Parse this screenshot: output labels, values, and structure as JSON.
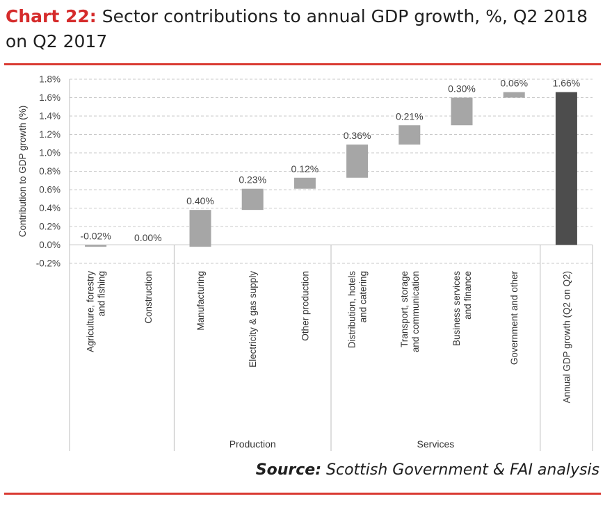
{
  "header": {
    "title_prefix": "Chart 22:",
    "title_text": "Sector contributions to annual GDP growth, %, Q2 2018 on Q2 2017"
  },
  "footer": {
    "source_label": "Source:",
    "source_text": "Scottish Government & FAI analysis"
  },
  "colors": {
    "sector_bar": "#a6a6a6",
    "total_bar": "#4d4d4d",
    "accent": "#d93a32"
  },
  "chart_data": {
    "type": "waterfall",
    "ylabel": "Contribution to GDP growth (%)",
    "ylim": [
      -0.2,
      1.8
    ],
    "yticks": [
      "-0.2%",
      "0.0%",
      "0.2%",
      "0.4%",
      "0.6%",
      "0.8%",
      "1.0%",
      "1.2%",
      "1.4%",
      "1.6%",
      "1.8%"
    ],
    "ytick_values": [
      -0.2,
      0.0,
      0.2,
      0.4,
      0.6,
      0.8,
      1.0,
      1.2,
      1.4,
      1.6,
      1.8
    ],
    "grid": true,
    "categories": [
      "Agriculture, forestry and fishing",
      "Construction",
      "Manufacturing",
      "Electricity & gas supply",
      "Other production",
      "Distribution, hotels and catering",
      "Transport, storage and communication",
      "Business services and finance",
      "Government and other",
      "Annual GDP growth (Q2 on Q2)"
    ],
    "category_lines": [
      [
        "Agriculture, forestry",
        "and fishing"
      ],
      [
        "Construction"
      ],
      [
        "Manufacturing"
      ],
      [
        "Electricity & gas supply"
      ],
      [
        "Other production"
      ],
      [
        "Distribution, hotels",
        "and catering"
      ],
      [
        "Transport, storage",
        "and communication"
      ],
      [
        "Business services",
        "and finance"
      ],
      [
        "Government and other"
      ],
      [
        "Annual GDP growth (Q2 on Q2)"
      ]
    ],
    "values": [
      -0.02,
      0.0,
      0.4,
      0.23,
      0.12,
      0.36,
      0.21,
      0.3,
      0.06,
      1.66
    ],
    "starts": [
      0.0,
      -0.02,
      -0.02,
      0.38,
      0.61,
      0.73,
      1.09,
      1.3,
      1.6,
      0.0
    ],
    "data_labels": [
      "-0.02%",
      "0.00%",
      "0.40%",
      "0.23%",
      "0.12%",
      "0.36%",
      "0.21%",
      "0.30%",
      "0.06%",
      "1.66%"
    ],
    "total_index": 9,
    "groups": [
      {
        "label": "Production",
        "from": 2,
        "to": 4
      },
      {
        "label": "Services",
        "from": 5,
        "to": 8
      }
    ]
  }
}
